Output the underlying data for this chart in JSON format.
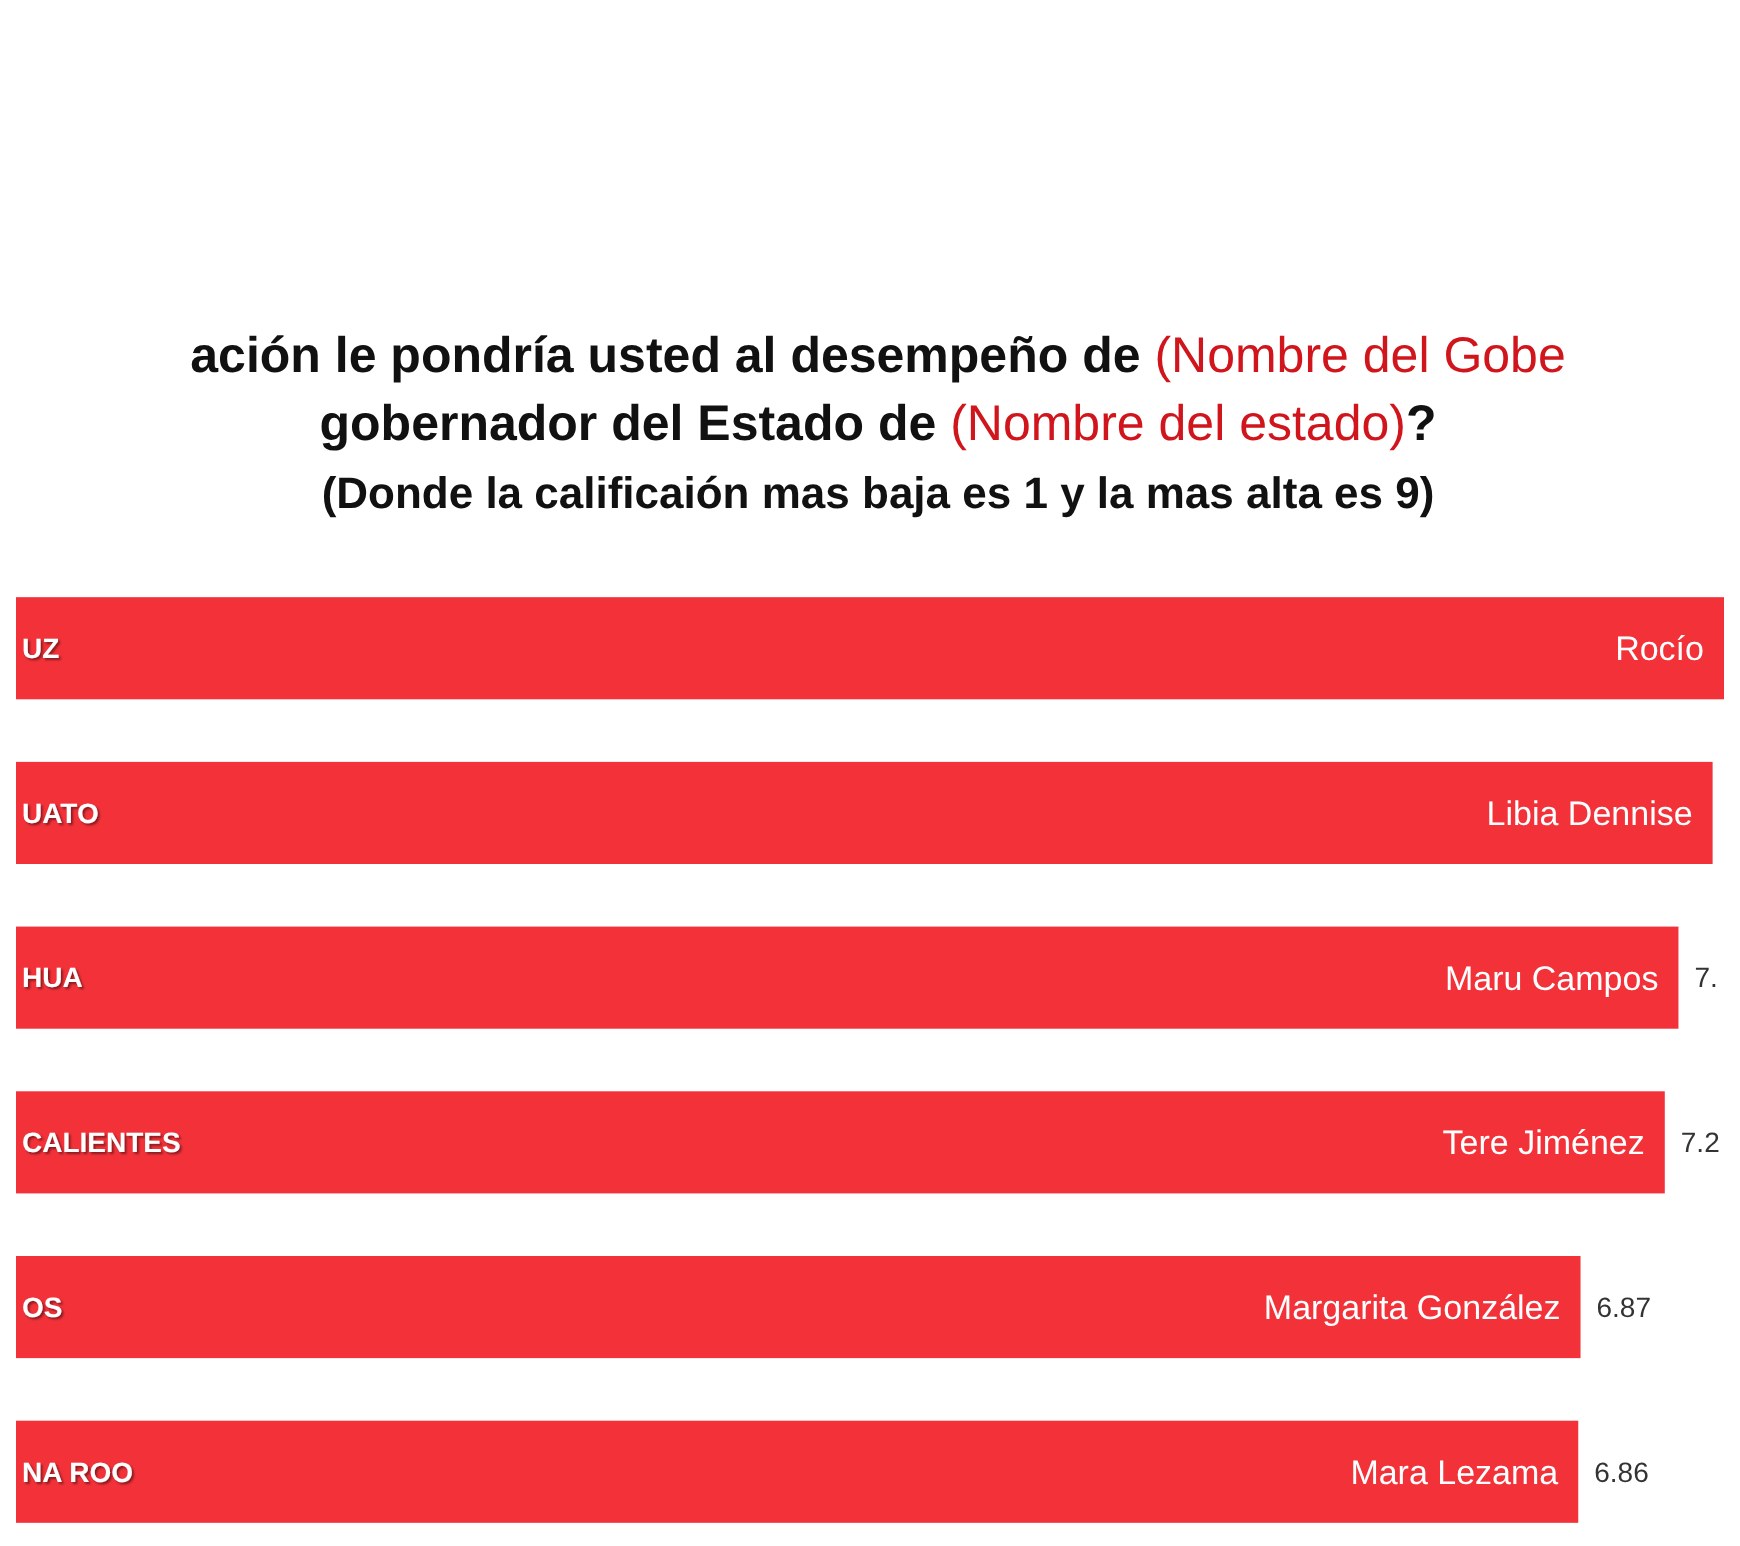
{
  "chart_data": {
    "type": "bar",
    "orientation": "horizontal",
    "title": "ación le pondría usted al desempeño de (Nombre del Gobe\ngobernador del Estado de (Nombre del estado)?",
    "subtitle": "(Donde la calificaión mas baja es 1 y la mas alta es 9)",
    "categories": [
      "UZ",
      "UATO",
      "HUA",
      "CALIENTES",
      "OS",
      "NA ROO"
    ],
    "values": [
      7.5,
      7.45,
      7.3,
      7.24,
      6.87,
      6.86
    ],
    "value_labels": [
      null,
      null,
      "7.",
      "7.2",
      "6.87",
      "6.86"
    ],
    "color": "#f23139",
    "annotations": [
      {
        "text": "Rocío",
        "x": 7.5,
        "y": "UZ"
      },
      {
        "text": "Libia Dennise",
        "x": 7.45,
        "y": "UATO"
      },
      {
        "text": "Maru Campos",
        "x": 7.3,
        "y": "HUA"
      },
      {
        "text": "Tere Jiménez",
        "x": 7.24,
        "y": "CALIENTES"
      },
      {
        "text": "Margarita González",
        "x": 6.87,
        "y": "OS"
      },
      {
        "text": "Mara Lezama",
        "x": 6.86,
        "y": "NA ROO"
      }
    ]
  }
}
